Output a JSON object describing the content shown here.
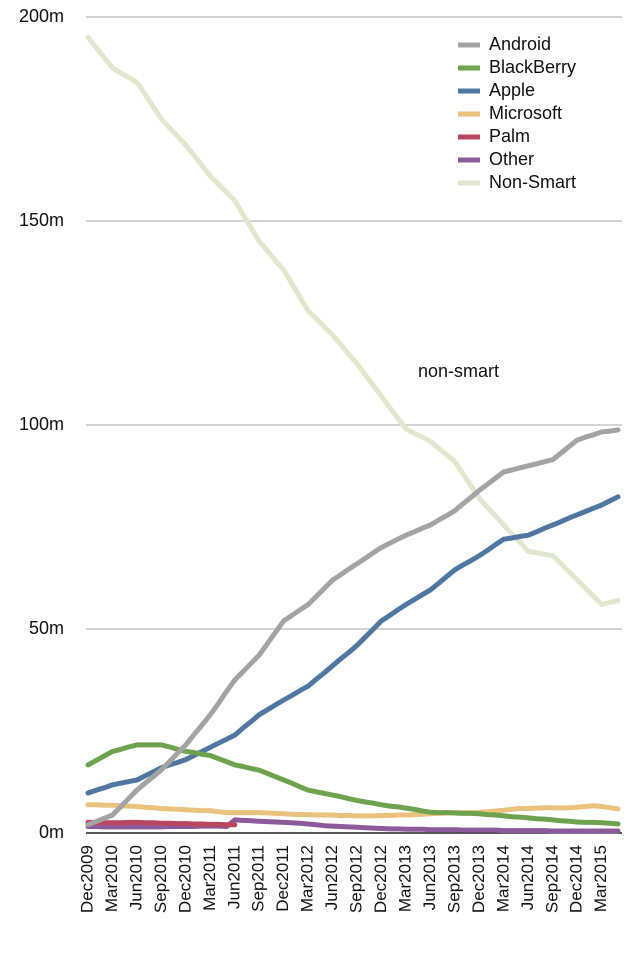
{
  "chart_data": {
    "type": "line",
    "annotation": "non-smart",
    "categories": [
      "Dec2009",
      null,
      null,
      "Mar2010",
      null,
      null,
      "Jun2010",
      null,
      null,
      "Sep2010",
      null,
      null,
      "Dec2010",
      null,
      null,
      "Mar2011",
      null,
      null,
      "Jun2011",
      null,
      null,
      "Sep2011",
      null,
      null,
      "Dec2011",
      null,
      null,
      "Mar2012",
      null,
      null,
      "Jun2012",
      null,
      null,
      "Sep2012",
      null,
      null,
      "Dec2012",
      null,
      null,
      "Mar2013",
      null,
      null,
      "Jun2013",
      null,
      null,
      "Sep2013",
      null,
      null,
      "Dec2013",
      null,
      null,
      "Mar2014",
      null,
      null,
      "Jun2014",
      null,
      null,
      "Sep2014",
      null,
      null,
      "Dec2014",
      null,
      null,
      "Mar2015",
      null,
      null
    ],
    "ylim": [
      0,
      200
    ],
    "yticks": [
      {
        "value": 0,
        "label": "0m"
      },
      {
        "value": 50,
        "label": "50m"
      },
      {
        "value": 100,
        "label": "100m"
      },
      {
        "value": 150,
        "label": "150m"
      },
      {
        "value": 200,
        "label": "200m"
      }
    ],
    "grid": true,
    "legend": "upper right",
    "series": [
      {
        "name": "Android",
        "color": "#a3a3a3",
        "values": [
          2,
          2.8,
          3.6,
          4.4,
          6.4,
          8.5,
          10.5,
          12.2,
          13.8,
          15.5,
          17.5,
          19.6,
          21.6,
          24.1,
          26.5,
          29,
          31.8,
          34.7,
          37.5,
          39.5,
          41.6,
          43.6,
          46.4,
          49.2,
          52,
          53.3,
          54.7,
          56,
          58,
          60,
          62,
          63.3,
          64.7,
          66,
          67.3,
          68.7,
          70,
          71,
          72,
          73,
          73.8,
          74.7,
          75.5,
          76.7,
          77.8,
          79,
          80.7,
          82.3,
          84,
          85.5,
          87,
          88.5,
          89,
          89.5,
          90,
          90.5,
          91,
          91.5,
          93.1,
          94.7,
          96.3,
          97,
          97.6,
          98.3,
          98.5,
          98.8
        ]
      },
      {
        "name": "BlackBerry",
        "color": "#6fa24f",
        "values": [
          16.7,
          17.8,
          18.9,
          20,
          20.5,
          21.1,
          21.6,
          21.6,
          21.6,
          21.6,
          21.1,
          20.5,
          20,
          19.7,
          19.3,
          19,
          18.2,
          17.5,
          16.7,
          16.3,
          15.8,
          15.4,
          14.6,
          13.8,
          13,
          12.2,
          11.3,
          10.5,
          10.1,
          9.7,
          9.3,
          8.9,
          8.4,
          8,
          7.6,
          7.3,
          6.9,
          6.6,
          6.4,
          6.1,
          5.8,
          5.4,
          5.1,
          5,
          5,
          4.9,
          4.8,
          4.8,
          4.7,
          4.5,
          4.4,
          4.2,
          4,
          3.9,
          3.7,
          3.5,
          3.4,
          3.2,
          3,
          2.9,
          2.7,
          2.6,
          2.6,
          2.5,
          2.4,
          2.2
        ]
      },
      {
        "name": "Apple",
        "color": "#4f77a1",
        "values": [
          9.8,
          10.5,
          11.1,
          11.8,
          12.2,
          12.6,
          13,
          14,
          15,
          16,
          16.7,
          17.3,
          18,
          19,
          20,
          21,
          22,
          23,
          24,
          25.7,
          27.3,
          29,
          30.2,
          31.4,
          32.6,
          33.7,
          34.9,
          36,
          37.7,
          39.3,
          41,
          42.7,
          44.3,
          46,
          48,
          50,
          52,
          53.3,
          54.7,
          56,
          57.2,
          58.4,
          59.6,
          61.2,
          62.9,
          64.5,
          65.7,
          66.8,
          68,
          69.3,
          70.7,
          72,
          72.3,
          72.7,
          73,
          73.8,
          74.7,
          75.5,
          76.3,
          77.2,
          78,
          78.8,
          79.6,
          80.4,
          81.4,
          82.4
        ]
      },
      {
        "name": "Microsoft",
        "color": "#e9c27e",
        "values": [
          6.9,
          6.9,
          6.8,
          6.8,
          6.7,
          6.6,
          6.5,
          6.3,
          6.2,
          6.0,
          5.9,
          5.8,
          5.7,
          5.6,
          5.5,
          5.5,
          5.2,
          5.0,
          5.0,
          5.0,
          5.0,
          5.0,
          4.9,
          4.8,
          4.7,
          4.6,
          4.5,
          4.5,
          4.4,
          4.4,
          4.4,
          4.3,
          4.3,
          4.2,
          4.2,
          4.2,
          4.3,
          4.3,
          4.4,
          4.4,
          4.5,
          4.6,
          4.7,
          4.8,
          4.9,
          5.0,
          5.0,
          5.0,
          5.1,
          5.2,
          5.4,
          5.6,
          5.8,
          6.0,
          6.0,
          6.1,
          6.2,
          6.2,
          6.1,
          6.2,
          6.3,
          6.5,
          6.7,
          6.5,
          6.2,
          5.9
        ]
      },
      {
        "name": "Palm",
        "color": "#b8465e",
        "values": [
          2.6,
          2.6,
          2.5,
          2.5,
          2.5,
          2.6,
          2.6,
          2.5,
          2.5,
          2.4,
          2.4,
          2.3,
          2.3,
          2.2,
          2.2,
          2.1,
          2.1,
          2.0,
          2.0,
          null,
          null,
          null,
          null,
          null,
          null,
          null,
          null,
          null,
          null,
          null,
          null,
          null,
          null,
          null,
          null,
          null,
          null,
          null,
          null,
          null,
          null,
          null,
          null,
          null,
          null,
          null,
          null,
          null,
          null,
          null,
          null,
          null,
          null,
          null,
          null,
          null,
          null,
          null,
          null,
          null,
          null,
          null,
          null,
          null,
          null,
          null
        ]
      },
      {
        "name": "Other",
        "color": "#8c5a9b",
        "values": [
          1.6,
          1.6,
          1.5,
          1.5,
          1.5,
          1.5,
          1.5,
          1.5,
          1.5,
          1.5,
          1.6,
          1.6,
          1.6,
          1.6,
          1.7,
          1.7,
          1.7,
          1.6,
          3.2,
          3.1,
          3.0,
          2.9,
          2.8,
          2.7,
          2.6,
          2.5,
          2.4,
          2.2,
          2.0,
          1.8,
          1.7,
          1.6,
          1.5,
          1.4,
          1.3,
          1.2,
          1.1,
          1.0,
          1.0,
          0.9,
          0.9,
          0.9,
          0.8,
          0.8,
          0.8,
          0.8,
          0.7,
          0.7,
          0.7,
          0.7,
          0.7,
          0.6,
          0.6,
          0.6,
          0.6,
          0.6,
          0.6,
          0.5,
          0.5,
          0.5,
          0.5,
          0.5,
          0.5,
          0.5,
          0.5,
          0.5
        ]
      },
      {
        "name": "Non-Smart",
        "color": "#dfe7cf",
        "values": [
          195,
          192.5,
          190,
          187.5,
          186.3,
          185.2,
          184,
          181,
          178,
          175,
          172.9,
          170.7,
          168.6,
          166.1,
          163.5,
          161,
          159,
          157,
          155,
          151.7,
          148.3,
          145,
          142.7,
          140.3,
          138,
          134.7,
          131.3,
          128,
          126,
          124,
          122,
          119.7,
          117.3,
          115,
          112.3,
          109.7,
          107,
          104.3,
          101.7,
          99,
          98,
          97,
          96,
          94.3,
          92.7,
          91,
          88,
          85,
          82,
          79.8,
          77.7,
          75.5,
          73.3,
          71.2,
          69,
          68.7,
          68.3,
          68,
          66,
          64,
          62,
          60,
          58,
          56,
          56.5,
          57
        ]
      }
    ]
  }
}
